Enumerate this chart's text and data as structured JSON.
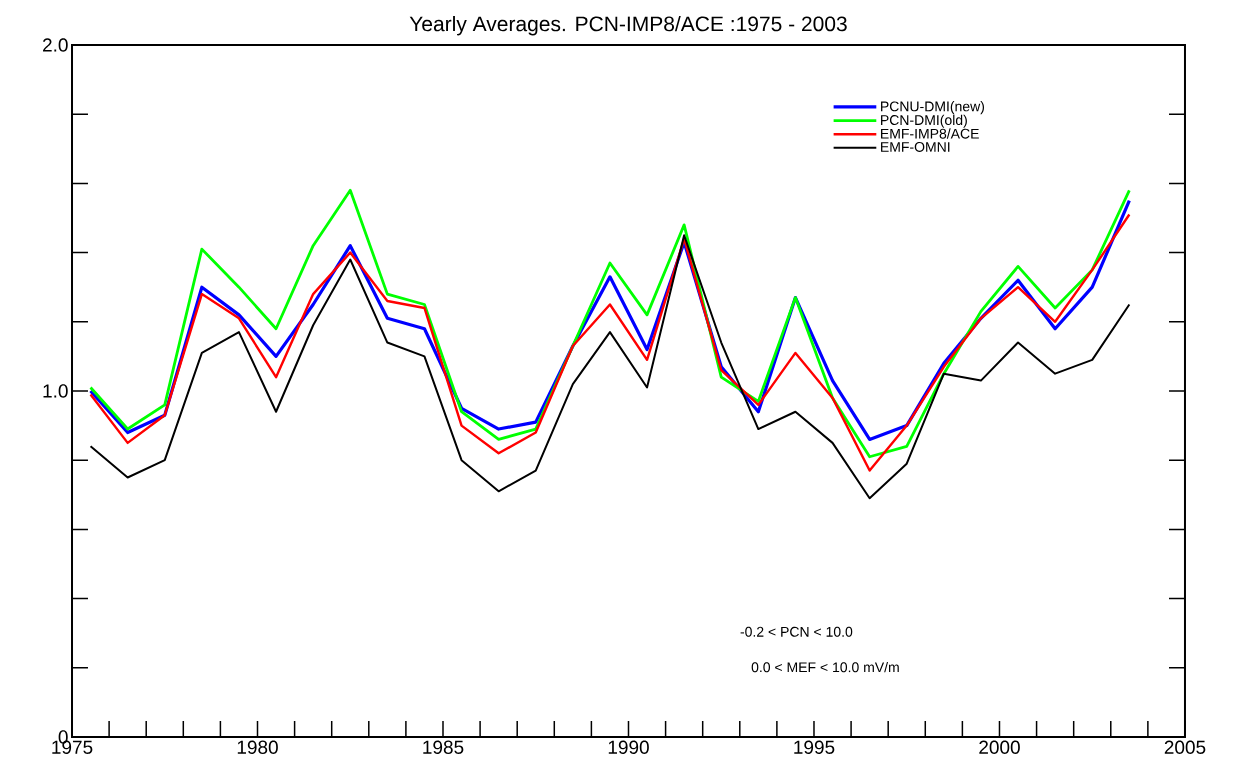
{
  "chart_data": {
    "type": "line",
    "title": "Yearly Averages. PCN-IMP8/ACE :1975 - 2003",
    "x": [
      1975.5,
      1976.5,
      1977.5,
      1978.5,
      1979.5,
      1980.5,
      1981.5,
      1982.5,
      1983.5,
      1984.5,
      1985.5,
      1986.5,
      1987.5,
      1988.5,
      1989.5,
      1990.5,
      1991.5,
      1992.5,
      1993.5,
      1994.5,
      1995.5,
      1996.5,
      1997.5,
      1998.5,
      1999.5,
      2000.5,
      2001.5,
      2002.5,
      2003.5
    ],
    "series": [
      {
        "name": "PCNU-DMI(new)",
        "color": "#0000ff",
        "values": [
          1.0,
          0.88,
          0.93,
          1.3,
          1.22,
          1.1,
          1.25,
          1.42,
          1.21,
          1.18,
          0.95,
          0.89,
          0.91,
          1.13,
          1.33,
          1.12,
          1.43,
          1.07,
          0.94,
          1.27,
          1.03,
          0.86,
          0.9,
          1.08,
          1.21,
          1.32,
          1.18,
          1.3,
          1.55
        ]
      },
      {
        "name": "PCN-DMI(old)",
        "color": "#00ff00",
        "values": [
          1.01,
          0.89,
          0.96,
          1.41,
          1.3,
          1.18,
          1.42,
          1.58,
          1.28,
          1.25,
          0.94,
          0.86,
          0.89,
          1.13,
          1.37,
          1.22,
          1.48,
          1.04,
          0.97,
          1.27,
          0.98,
          0.81,
          0.84,
          1.05,
          1.23,
          1.36,
          1.24,
          1.35,
          1.58
        ]
      },
      {
        "name": "EMF-IMP8/ACE",
        "color": "#ff0000",
        "values": [
          0.99,
          0.85,
          0.93,
          1.28,
          1.21,
          1.04,
          1.28,
          1.4,
          1.26,
          1.24,
          0.9,
          0.82,
          0.88,
          1.13,
          1.25,
          1.09,
          1.44,
          1.06,
          0.96,
          1.11,
          0.98,
          0.77,
          0.9,
          1.07,
          1.21,
          1.3,
          1.2,
          1.35,
          1.51
        ]
      },
      {
        "name": "EMF-OMNI",
        "color": "#000000",
        "values": [
          0.84,
          0.75,
          0.8,
          1.11,
          1.17,
          0.94,
          1.19,
          1.38,
          1.14,
          1.1,
          0.8,
          0.71,
          0.77,
          1.02,
          1.17,
          1.01,
          1.45,
          1.14,
          0.89,
          0.94,
          0.85,
          0.69,
          0.79,
          1.05,
          1.03,
          1.14,
          1.05,
          1.09,
          1.25
        ]
      }
    ],
    "xlim": [
      1975,
      2005
    ],
    "xticks": [
      1975,
      {
        "value": 1976,
        "label": null
      },
      {
        "value": 1977,
        "label": null
      },
      {
        "value": 1978,
        "label": null
      },
      {
        "value": 1979,
        "label": null
      },
      1980,
      {
        "value": 1981,
        "label": null
      },
      {
        "value": 1982,
        "label": null
      },
      {
        "value": 1983,
        "label": null
      },
      {
        "value": 1984,
        "label": null
      },
      1985,
      {
        "value": 1986,
        "label": null
      },
      {
        "value": 1987,
        "label": null
      },
      {
        "value": 1988,
        "label": null
      },
      {
        "value": 1989,
        "label": null
      },
      1990,
      {
        "value": 1991,
        "label": null
      },
      {
        "value": 1992,
        "label": null
      },
      {
        "value": 1993,
        "label": null
      },
      {
        "value": 1994,
        "label": null
      },
      1995,
      {
        "value": 1996,
        "label": null
      },
      {
        "value": 1997,
        "label": null
      },
      {
        "value": 1998,
        "label": null
      },
      {
        "value": 1999,
        "label": null
      },
      2000,
      {
        "value": 2001,
        "label": null
      },
      {
        "value": 2002,
        "label": null
      },
      {
        "value": 2003,
        "label": null
      },
      {
        "value": 2004,
        "label": null
      },
      2005
    ],
    "ylim": [
      0,
      2
    ],
    "yticks": [
      0,
      {
        "value": 0.2,
        "label": null
      },
      {
        "value": 0.4,
        "label": null
      },
      {
        "value": 0.6,
        "label": null
      },
      {
        "value": 0.8,
        "label": null
      },
      {
        "value": 1,
        "label": "1.0"
      },
      {
        "value": 1.2,
        "label": null
      },
      {
        "value": 1.4,
        "label": null
      },
      {
        "value": 1.6,
        "label": null
      },
      {
        "value": 1.8,
        "label": null
      },
      {
        "value": 2,
        "label": "2.0"
      }
    ],
    "legend": "top right",
    "line_style": "solid",
    "annotations": [
      "-0.2 < PCN < 10.0",
      "0.0 < MEF < 10.0 mV/m"
    ]
  }
}
